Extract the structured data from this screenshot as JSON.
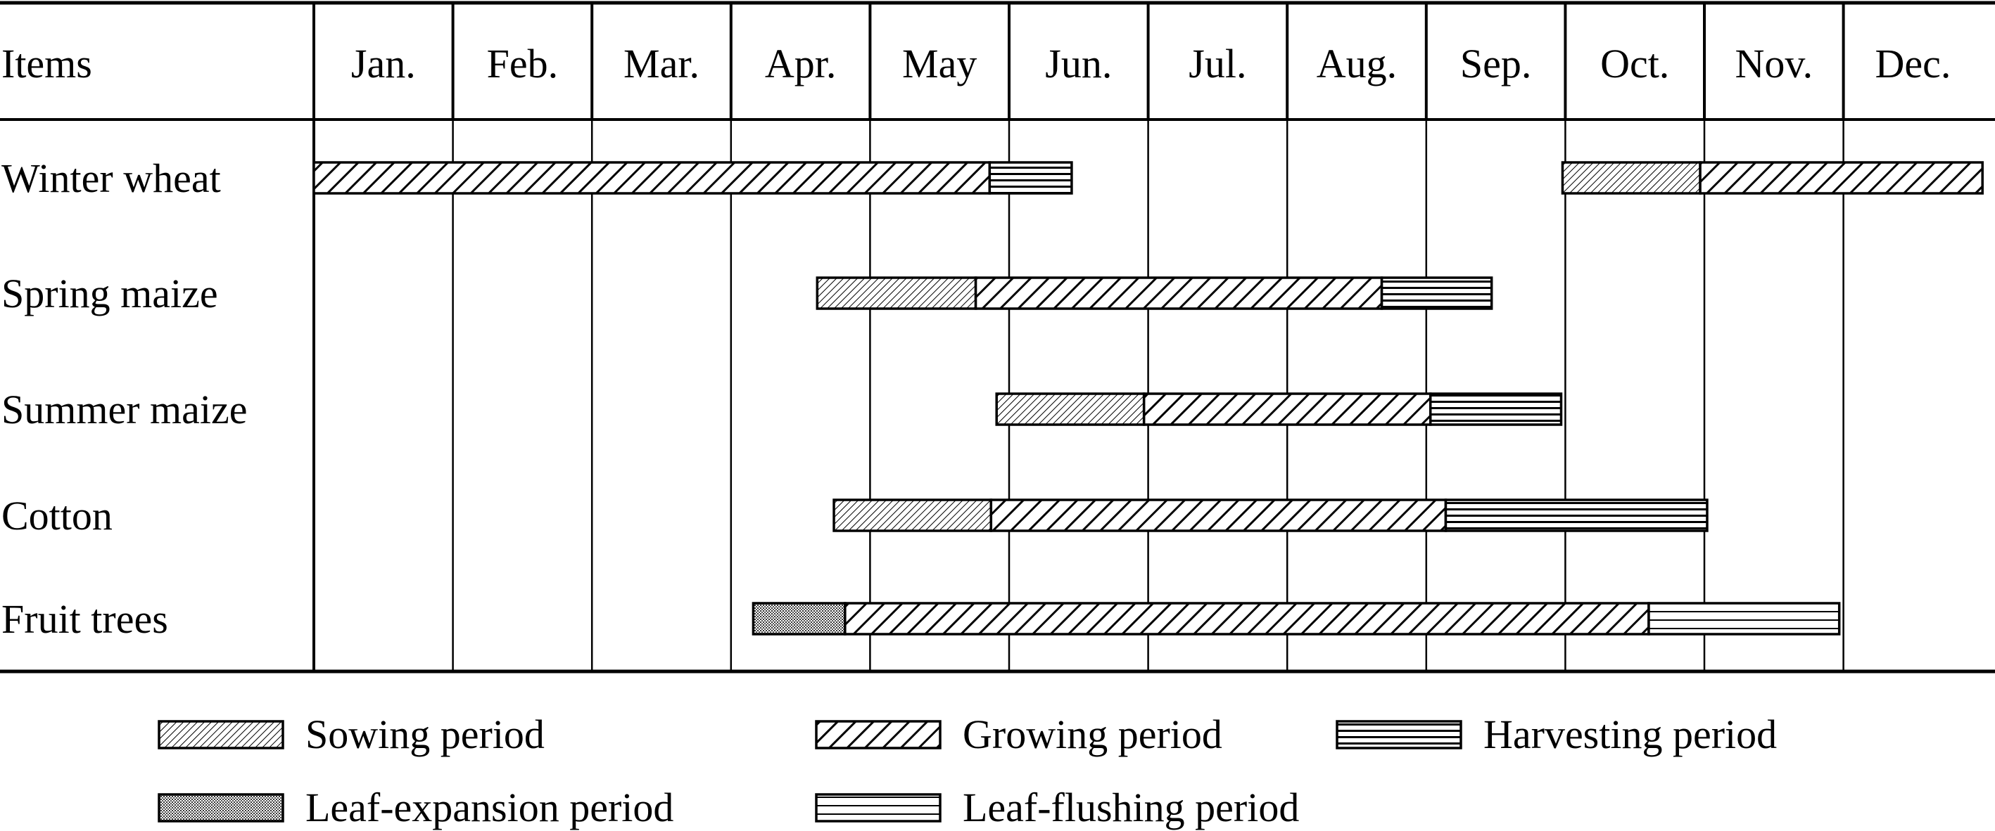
{
  "chart_data": {
    "type": "gantt",
    "header_label": "Items",
    "months": [
      "Jan.",
      "Feb.",
      "Mar.",
      "Apr.",
      "May",
      "Jun.",
      "Jul.",
      "Aug.",
      "Sep.",
      "Oct.",
      "Nov.",
      "Dec."
    ],
    "items": [
      {
        "name": "Winter wheat",
        "segments": [
          {
            "period": "growing",
            "start": 0.0,
            "end": 4.86
          },
          {
            "period": "harvesting",
            "start": 4.86,
            "end": 5.45
          },
          {
            "period": "sowing",
            "start": 8.98,
            "end": 9.97
          },
          {
            "period": "growing",
            "start": 9.97,
            "end": 12.0
          }
        ]
      },
      {
        "name": "Spring maize",
        "segments": [
          {
            "period": "sowing",
            "start": 3.62,
            "end": 4.76
          },
          {
            "period": "growing",
            "start": 4.76,
            "end": 7.68
          },
          {
            "period": "harvesting",
            "start": 7.68,
            "end": 8.47
          }
        ]
      },
      {
        "name": "Summer maize",
        "segments": [
          {
            "period": "sowing",
            "start": 4.91,
            "end": 5.97
          },
          {
            "period": "growing",
            "start": 5.97,
            "end": 8.03
          },
          {
            "period": "harvesting",
            "start": 8.03,
            "end": 8.97
          }
        ]
      },
      {
        "name": "Cotton",
        "segments": [
          {
            "period": "sowing",
            "start": 3.74,
            "end": 4.87
          },
          {
            "period": "growing",
            "start": 4.87,
            "end": 8.14
          },
          {
            "period": "harvesting",
            "start": 8.14,
            "end": 10.02
          }
        ]
      },
      {
        "name": "Fruit trees",
        "segments": [
          {
            "period": "leaf_expansion",
            "start": 3.16,
            "end": 3.82
          },
          {
            "period": "growing",
            "start": 3.82,
            "end": 9.6
          },
          {
            "period": "leaf_flushing",
            "start": 9.6,
            "end": 10.97
          }
        ]
      }
    ],
    "legend": [
      {
        "period": "sowing",
        "label": "Sowing period"
      },
      {
        "period": "growing",
        "label": "Growing period"
      },
      {
        "period": "harvesting",
        "label": "Harvesting period"
      },
      {
        "period": "leaf_expansion",
        "label": "Leaf-expansion period"
      },
      {
        "period": "leaf_flushing",
        "label": "Leaf-flushing period"
      }
    ]
  }
}
